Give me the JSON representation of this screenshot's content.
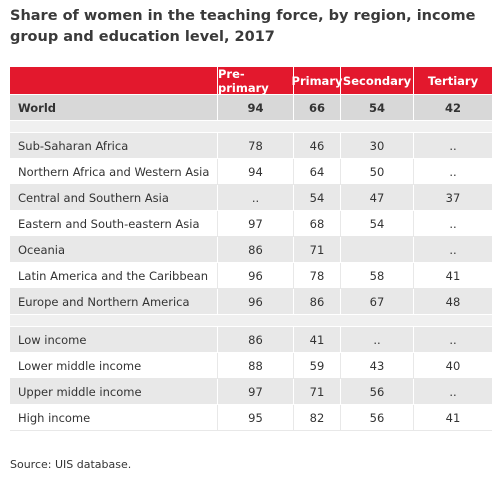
{
  "title": "Share of women in the teaching force, by region, income group and education level, 2017",
  "table": {
    "header": [
      "Pre-primary",
      "Primary",
      "Secondary",
      "Tertiary"
    ],
    "world": {
      "label": "World",
      "values": [
        94,
        66,
        54,
        42
      ]
    },
    "groups": [
      [
        {
          "label": "Sub-Saharan Africa",
          "values": [
            78,
            46,
            30,
            ".."
          ]
        },
        {
          "label": "Northern Africa and Western Asia",
          "values": [
            94,
            64,
            50,
            ".."
          ]
        },
        {
          "label": "Central and Southern Asia",
          "values": [
            "..",
            54,
            47,
            37
          ]
        },
        {
          "label": "Eastern and South-eastern Asia",
          "values": [
            97,
            68,
            54,
            ".."
          ]
        },
        {
          "label": "Oceania",
          "values": [
            86,
            71,
            null,
            ".."
          ]
        },
        {
          "label": "Latin America and the Caribbean",
          "values": [
            96,
            78,
            58,
            41
          ]
        },
        {
          "label": "Europe and Northern America",
          "values": [
            96,
            86,
            67,
            48
          ]
        }
      ],
      [
        {
          "label": "Low income",
          "values": [
            86,
            41,
            "..",
            ".."
          ]
        },
        {
          "label": "Lower middle income",
          "values": [
            88,
            59,
            43,
            40
          ]
        },
        {
          "label": "Upper middle income",
          "values": [
            97,
            71,
            56,
            ".."
          ]
        },
        {
          "label": "High income",
          "values": [
            95,
            82,
            56,
            41
          ]
        }
      ]
    ]
  },
  "source": "Source: UIS database."
}
